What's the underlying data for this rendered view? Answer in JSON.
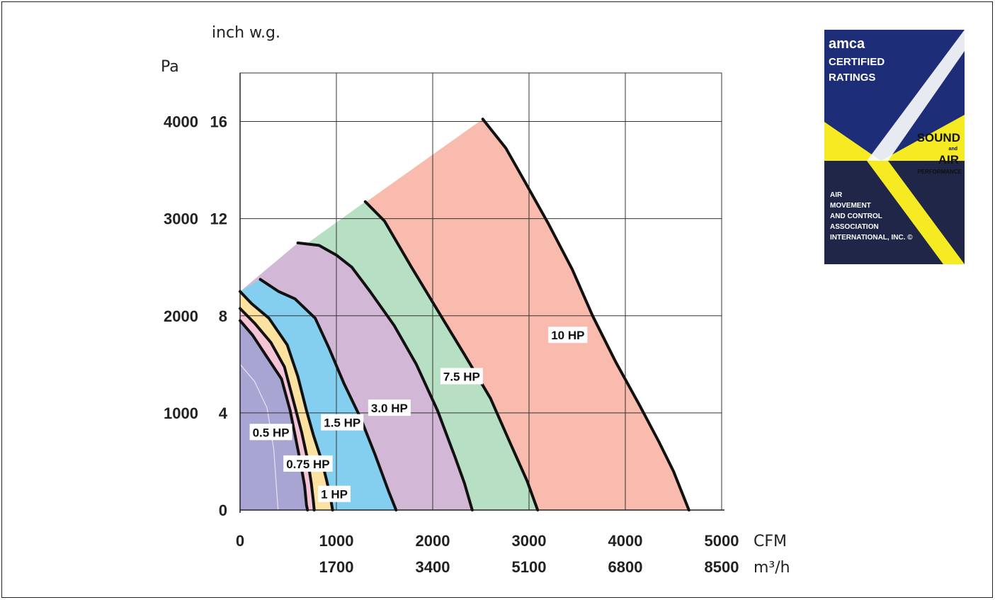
{
  "chart_data": {
    "type": "area",
    "title": "",
    "x_units": [
      "CFM",
      "m³/h"
    ],
    "y_units": [
      "Pa",
      "inch w.g."
    ],
    "x_ticks": [
      {
        "cfm": 0,
        "cfm_label": "0",
        "m3h_label": ""
      },
      {
        "cfm": 1000,
        "cfm_label": "1000",
        "m3h_label": "1700"
      },
      {
        "cfm": 2000,
        "cfm_label": "2000",
        "m3h_label": "3400"
      },
      {
        "cfm": 3000,
        "cfm_label": "3000",
        "m3h_label": "5100"
      },
      {
        "cfm": 4000,
        "cfm_label": "4000",
        "m3h_label": "6800"
      },
      {
        "cfm": 5000,
        "cfm_label": "5000",
        "m3h_label": "8500"
      }
    ],
    "y_ticks": [
      {
        "inwg": 0,
        "inwg_label": "0",
        "pa_label": ""
      },
      {
        "inwg": 4,
        "inwg_label": "4",
        "pa_label": "1000"
      },
      {
        "inwg": 8,
        "inwg_label": "8",
        "pa_label": "2000"
      },
      {
        "inwg": 12,
        "inwg_label": "12",
        "pa_label": "3000"
      },
      {
        "inwg": 16,
        "inwg_label": "16",
        "pa_label": "4000"
      }
    ],
    "xlim": [
      0,
      5000
    ],
    "ylim": [
      0,
      18
    ],
    "grid": true,
    "series": [
      {
        "name": "10 HP",
        "fill": "#f8bbae",
        "label_at": [
          3200,
          7.2
        ],
        "curve": [
          [
            2520,
            16.1
          ],
          [
            2620,
            15.6
          ],
          [
            2760,
            14.9
          ],
          [
            2960,
            13.5
          ],
          [
            3200,
            11.8
          ],
          [
            3450,
            9.9
          ],
          [
            3660,
            8.0
          ],
          [
            3900,
            6.1
          ],
          [
            4150,
            4.3
          ],
          [
            4350,
            2.8
          ],
          [
            4500,
            1.6
          ],
          [
            4600,
            0.6
          ],
          [
            4660,
            0
          ]
        ]
      },
      {
        "name": "7.5 HP",
        "fill": "#b7dfc3",
        "label_at": [
          2080,
          5.5
        ],
        "curve": [
          [
            1300,
            12.7
          ],
          [
            1500,
            11.9
          ],
          [
            1780,
            10.0
          ],
          [
            2070,
            8.1
          ],
          [
            2330,
            6.4
          ],
          [
            2600,
            4.6
          ],
          [
            2800,
            2.8
          ],
          [
            2980,
            1.2
          ],
          [
            3090,
            0
          ]
        ]
      },
      {
        "name": "3.0 HP",
        "fill": "#d2b8d6",
        "label_at": [
          1330,
          4.2
        ],
        "curve": [
          [
            600,
            11.0
          ],
          [
            820,
            10.9
          ],
          [
            1000,
            10.5
          ],
          [
            1160,
            10.0
          ],
          [
            1350,
            9.0
          ],
          [
            1600,
            7.6
          ],
          [
            1830,
            6.0
          ],
          [
            2050,
            4.1
          ],
          [
            2230,
            2.2
          ],
          [
            2330,
            1.1
          ],
          [
            2410,
            0
          ]
        ]
      },
      {
        "name": "1.5 HP",
        "fill": "#84cfef",
        "label_at": [
          840,
          3.6
        ],
        "curve": [
          [
            210,
            9.5
          ],
          [
            400,
            9.0
          ],
          [
            570,
            8.7
          ],
          [
            780,
            7.9
          ],
          [
            920,
            6.7
          ],
          [
            1080,
            5.2
          ],
          [
            1250,
            3.8
          ],
          [
            1400,
            2.3
          ],
          [
            1540,
            0.8
          ],
          [
            1620,
            0
          ]
        ]
      },
      {
        "name": "1 HP",
        "fill": "#fce2a0",
        "label_at": [
          810,
          0.65
        ],
        "curve": [
          [
            0,
            9.0
          ],
          [
            120,
            8.5
          ],
          [
            300,
            7.9
          ],
          [
            490,
            6.8
          ],
          [
            600,
            5.5
          ],
          [
            690,
            4.1
          ],
          [
            760,
            3.1
          ],
          [
            850,
            2.0
          ],
          [
            900,
            1.2
          ],
          [
            940,
            0.5
          ],
          [
            960,
            0
          ]
        ]
      },
      {
        "name": "0.75 HP",
        "fill": "#f4c4d6",
        "label_at": [
          450,
          1.9
        ],
        "curve": [
          [
            0,
            8.3
          ],
          [
            150,
            7.7
          ],
          [
            320,
            6.9
          ],
          [
            460,
            5.9
          ],
          [
            560,
            4.4
          ],
          [
            640,
            3.2
          ],
          [
            700,
            2.1
          ],
          [
            740,
            1.1
          ],
          [
            760,
            0.4
          ],
          [
            770,
            0
          ]
        ]
      },
      {
        "name": "0.5 HP",
        "fill": "#a9a5d3",
        "label_at": [
          100,
          3.2
        ],
        "curve": [
          [
            0,
            7.8
          ],
          [
            130,
            7.2
          ],
          [
            280,
            6.3
          ],
          [
            430,
            5.4
          ],
          [
            520,
            4.1
          ],
          [
            580,
            2.9
          ],
          [
            630,
            1.9
          ],
          [
            670,
            1.0
          ],
          [
            690,
            0.2
          ],
          [
            700,
            0
          ]
        ]
      }
    ],
    "inner_bottom_boundary": [
      [
        0,
        6.0
      ],
      [
        150,
        5.3
      ],
      [
        280,
        4.2
      ],
      [
        350,
        2.5
      ],
      [
        380,
        0.8
      ],
      [
        395,
        0
      ]
    ]
  },
  "certification_badge": {
    "brand": "amca",
    "line1": "CERTIFIED",
    "line2": "RATINGS",
    "sound": "SOUND",
    "and": "and",
    "air": "AIR",
    "performance": "PERFORMANCE",
    "org": [
      "AIR",
      "MOVEMENT",
      "AND CONTROL",
      "ASSOCIATION",
      "INTERNATIONAL, INC. ©"
    ],
    "colors": {
      "navy": "#1d2d78",
      "yellow": "#f6ea22",
      "dark": "#1f2647",
      "white": "#ffffff"
    }
  }
}
